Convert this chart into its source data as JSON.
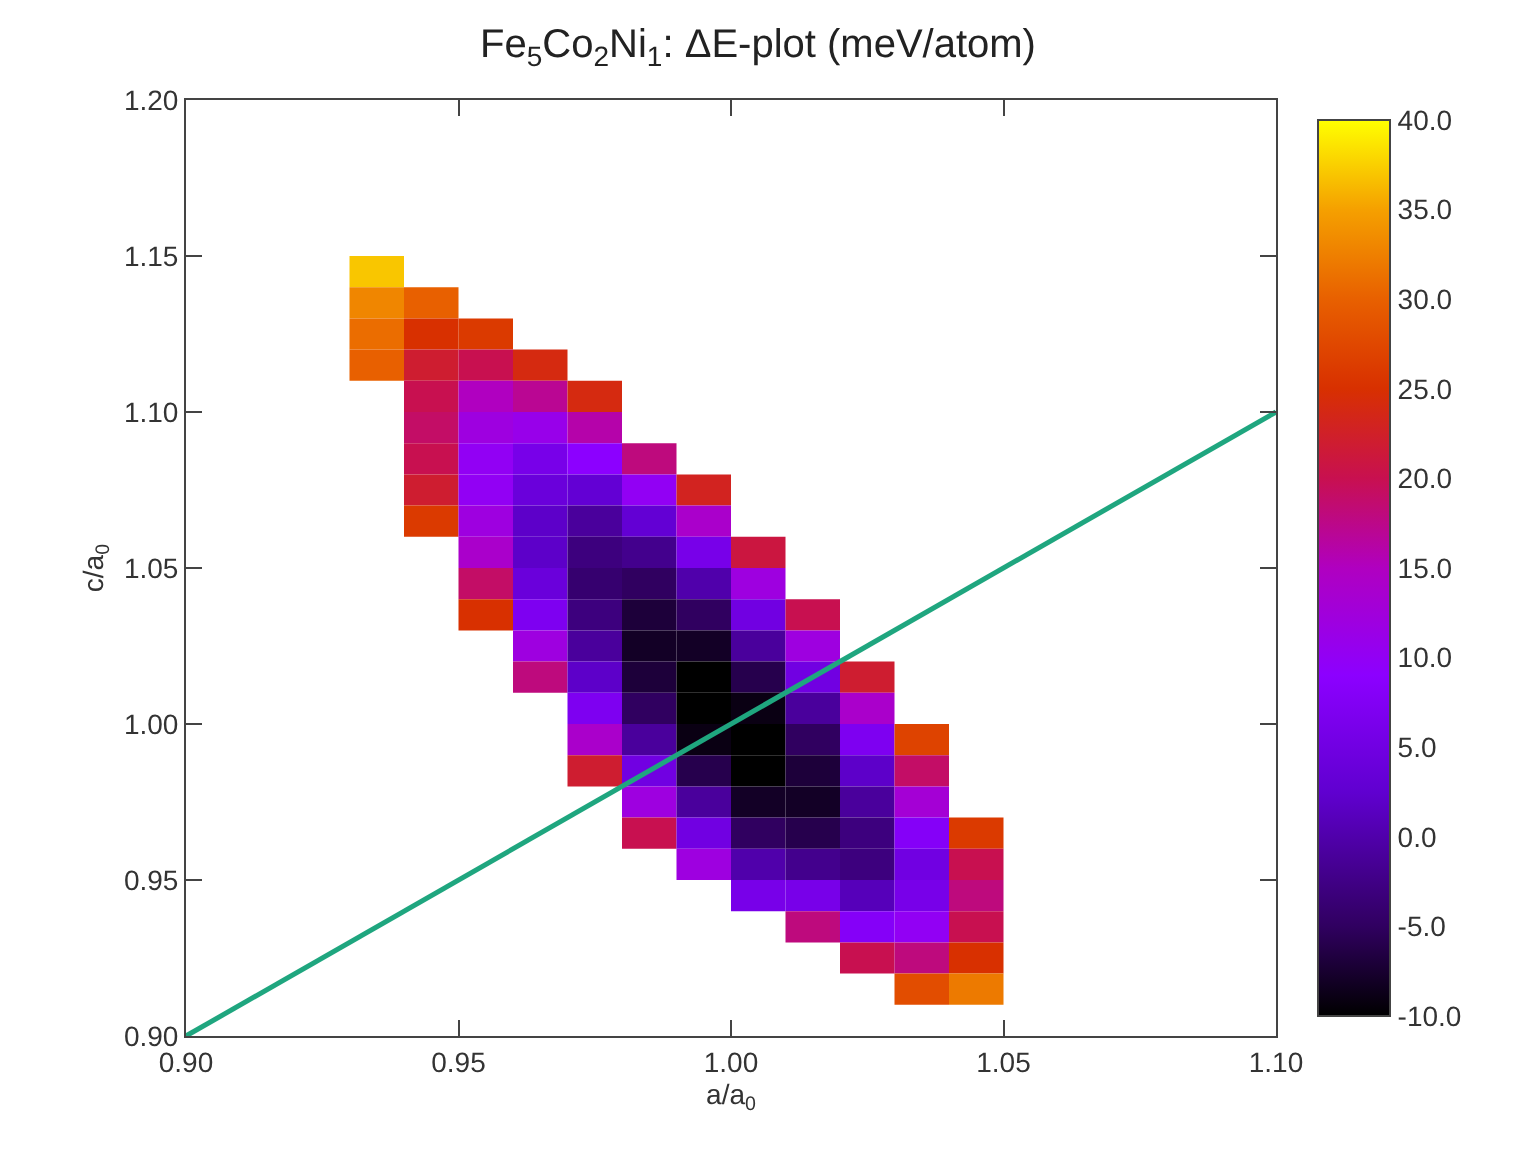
{
  "chart_data": {
    "type": "heatmap",
    "title": "Fe$_{5}$Co$_{2}$Ni$_{1}$: ΔE-plot (meV/atom)",
    "xlabel": "a/a$_{0}$",
    "ylabel": "c/a$_{0}$",
    "x": [
      0.935,
      0.945,
      0.955,
      0.965,
      0.975,
      0.985,
      0.995,
      1.005,
      1.015,
      1.025,
      1.035,
      1.045
    ],
    "y": [
      1.145,
      1.135,
      1.125,
      1.115,
      1.105,
      1.095,
      1.085,
      1.075,
      1.065,
      1.055,
      1.045,
      1.035,
      1.025,
      1.015,
      1.005,
      0.995,
      0.985,
      0.975,
      0.965,
      0.955,
      0.945,
      0.935,
      0.925,
      0.915
    ],
    "cells": [
      [
        37,
        null,
        null,
        null,
        null,
        null,
        null,
        null,
        null,
        null,
        null,
        null
      ],
      [
        33,
        30,
        null,
        null,
        null,
        null,
        null,
        null,
        null,
        null,
        null,
        null
      ],
      [
        31,
        25,
        26,
        null,
        null,
        null,
        null,
        null,
        null,
        null,
        null,
        null
      ],
      [
        30,
        22,
        20,
        24,
        null,
        null,
        null,
        null,
        null,
        null,
        null,
        null
      ],
      [
        null,
        20,
        15,
        17,
        24,
        null,
        null,
        null,
        null,
        null,
        null,
        null
      ],
      [
        null,
        19,
        12,
        11,
        16,
        null,
        null,
        null,
        null,
        null,
        null,
        null
      ],
      [
        null,
        20,
        10,
        6,
        9,
        18,
        null,
        null,
        null,
        null,
        null,
        null
      ],
      [
        null,
        22,
        10,
        4,
        3,
        10,
        23,
        null,
        null,
        null,
        null,
        null
      ],
      [
        null,
        26,
        12,
        2,
        -1,
        3,
        14,
        null,
        null,
        null,
        null,
        null
      ],
      [
        null,
        null,
        14,
        2,
        -3,
        -2,
        6,
        21,
        null,
        null,
        null,
        null
      ],
      [
        null,
        null,
        19,
        4,
        -4,
        -5,
        0,
        12,
        null,
        null,
        null,
        null
      ],
      [
        null,
        null,
        25,
        7,
        -3,
        -7,
        -5,
        5,
        20,
        null,
        null,
        null
      ],
      [
        null,
        null,
        null,
        12,
        -1,
        -8,
        -8,
        -1,
        12,
        null,
        null,
        null
      ],
      [
        null,
        null,
        null,
        18,
        2,
        -7,
        -10,
        -6,
        5,
        22,
        null,
        null
      ],
      [
        null,
        null,
        null,
        null,
        7,
        -5,
        -10,
        -9,
        -1,
        14,
        null,
        null
      ],
      [
        null,
        null,
        null,
        null,
        14,
        -1,
        -9,
        -10,
        -5,
        7,
        27,
        null
      ],
      [
        null,
        null,
        null,
        null,
        22,
        5,
        -6,
        -10,
        -7,
        2,
        19,
        null
      ],
      [
        null,
        null,
        null,
        null,
        null,
        12,
        -1,
        -8,
        -8,
        -1,
        13,
        null
      ],
      [
        null,
        null,
        null,
        null,
        null,
        20,
        5,
        -5,
        -6,
        -3,
        8,
        26
      ],
      [
        null,
        null,
        null,
        null,
        null,
        null,
        12,
        0,
        -2,
        -3,
        5,
        20
      ],
      [
        null,
        null,
        null,
        null,
        null,
        null,
        null,
        6,
        6,
        1,
        6,
        18
      ],
      [
        null,
        null,
        null,
        null,
        null,
        null,
        null,
        null,
        18,
        8,
        10,
        20
      ],
      [
        null,
        null,
        null,
        null,
        null,
        null,
        null,
        null,
        null,
        20,
        18,
        25
      ],
      [
        null,
        null,
        null,
        null,
        null,
        null,
        null,
        null,
        null,
        null,
        28,
        32
      ]
    ],
    "clim": [
      -10,
      40
    ],
    "cticks": [
      {
        "value": -10,
        "label": "-10.0"
      },
      {
        "value": -5,
        "label": "-5.0"
      },
      {
        "value": 0,
        "label": "0.0"
      },
      {
        "value": 5,
        "label": "5.0"
      },
      {
        "value": 10,
        "label": "10.0"
      },
      {
        "value": 15,
        "label": "15.0"
      },
      {
        "value": 20,
        "label": "20.0"
      },
      {
        "value": 25,
        "label": "25.0"
      },
      {
        "value": 30,
        "label": "30.0"
      },
      {
        "value": 35,
        "label": "35.0"
      },
      {
        "value": 40,
        "label": "40.0"
      }
    ],
    "series": [
      {
        "type": "line",
        "color": "#1fa67f",
        "x": [
          0.9,
          1.1
        ],
        "values": [
          0.9,
          1.1
        ]
      }
    ],
    "xlim": [
      0.9,
      1.1
    ],
    "ylim": [
      0.9,
      1.2
    ],
    "xticks": [
      {
        "value": 0.9,
        "label": "0.90"
      },
      {
        "value": 0.95,
        "label": "0.95"
      },
      {
        "value": 1.0,
        "label": "1.00"
      },
      {
        "value": 1.05,
        "label": "1.05"
      },
      {
        "value": 1.1,
        "label": "1.10"
      }
    ],
    "yticks": [
      {
        "value": 0.9,
        "label": "0.90"
      },
      {
        "value": 0.95,
        "label": "0.95"
      },
      {
        "value": 1.0,
        "label": "1.00"
      },
      {
        "value": 1.05,
        "label": "1.05"
      },
      {
        "value": 1.1,
        "label": "1.10"
      },
      {
        "value": 1.15,
        "label": "1.15"
      },
      {
        "value": 1.2,
        "label": "1.20"
      }
    ],
    "grid": false
  }
}
